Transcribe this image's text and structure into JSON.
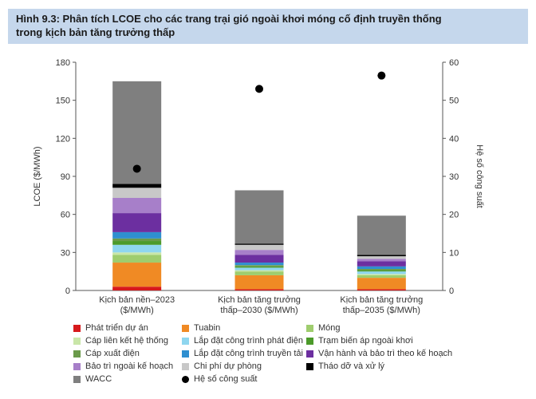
{
  "header": {
    "title_line1": "Hình 9.3: Phân tích LCOE cho các trang trại gió ngoài khơi móng cố định truyền thống",
    "title_line2": "trong kịch bản tăng trưởng thấp"
  },
  "chart_data": {
    "type": "bar",
    "stacked": true,
    "ylabel": "LCOE ($/MWh)",
    "y2label": "Hệ số công suất",
    "ylim": [
      0,
      180
    ],
    "y2lim": [
      0,
      60
    ],
    "yticks": [
      "0",
      "30",
      "60",
      "90",
      "120",
      "150",
      "180"
    ],
    "y2ticks": [
      "0",
      "10",
      "20",
      "30",
      "40",
      "50",
      "60"
    ],
    "categories": [
      [
        "Kịch bản nền–2023",
        "($/MWh)"
      ],
      [
        "Kịch bản tăng trưởng",
        "thấp–2030 ($/MWh)"
      ],
      [
        "Kịch bản tăng trưởng",
        "thấp–2035 ($/MWh)"
      ]
    ],
    "series": [
      {
        "name": "Phát triển dự án",
        "color": "#d7191c",
        "values": [
          3,
          1,
          1
        ]
      },
      {
        "name": "Tuabin",
        "color": "#f08a24",
        "values": [
          19,
          11,
          9
        ]
      },
      {
        "name": "Móng",
        "color": "#9fcd6e",
        "values": [
          6,
          3,
          2
        ]
      },
      {
        "name": "Cáp liên kết hệ thống",
        "color": "#c9e6a8",
        "values": [
          2,
          1,
          1
        ]
      },
      {
        "name": "Lắp đặt công trình phát điện",
        "color": "#8fd6ef",
        "values": [
          6,
          2,
          2
        ]
      },
      {
        "name": "Trạm biến áp ngoài khơi",
        "color": "#4c9a2a",
        "values": [
          3,
          1,
          1
        ]
      },
      {
        "name": "Cáp xuất điện",
        "color": "#6a9a4a",
        "values": [
          2,
          1,
          1
        ]
      },
      {
        "name": "Lắp đặt công trình truyền tải",
        "color": "#2f8fd0",
        "values": [
          5,
          2,
          2
        ]
      },
      {
        "name": "Vận hành và bảo trì theo kế hoạch",
        "color": "#6c2fa0",
        "values": [
          15,
          6,
          4
        ]
      },
      {
        "name": "Bảo trì ngoài kế hoạch",
        "color": "#a77fc9",
        "values": [
          12,
          4,
          2
        ]
      },
      {
        "name": "Chi phí dự phòng",
        "color": "#c8c8c8",
        "values": [
          8,
          4,
          2
        ]
      },
      {
        "name": "Tháo dỡ và xử lý",
        "color": "#000000",
        "values": [
          3,
          1,
          1
        ]
      },
      {
        "name": "WACC",
        "color": "#7f7f7f",
        "values": [
          81,
          42,
          31
        ]
      }
    ],
    "capacity_factor": {
      "name": "Hệ số công suất",
      "values": [
        32,
        53,
        56.5
      ]
    }
  },
  "legend": {
    "items": [
      {
        "label": "Phát triển dự án",
        "color": "#d7191c",
        "kind": "square"
      },
      {
        "label": "Tuabin",
        "color": "#f08a24",
        "kind": "square"
      },
      {
        "label": "Móng",
        "color": "#9fcd6e",
        "kind": "square"
      },
      {
        "label": "Cáp liên kết hệ thống",
        "color": "#c9e6a8",
        "kind": "square"
      },
      {
        "label": "Lắp đặt công trình phát điện",
        "color": "#8fd6ef",
        "kind": "square"
      },
      {
        "label": "Trạm biến áp ngoài khơi",
        "color": "#4c9a2a",
        "kind": "square"
      },
      {
        "label": "Cáp xuất điện",
        "color": "#6a9a4a",
        "kind": "square"
      },
      {
        "label": "Lắp đặt công trình truyền tải",
        "color": "#2f8fd0",
        "kind": "square"
      },
      {
        "label": "Vận hành và bảo trì theo kế hoạch",
        "color": "#6c2fa0",
        "kind": "square"
      },
      {
        "label": "Bảo trì ngoài kế hoạch",
        "color": "#a77fc9",
        "kind": "square"
      },
      {
        "label": "Chi phí dự phòng",
        "color": "#c8c8c8",
        "kind": "square"
      },
      {
        "label": "Tháo dỡ và xử lý",
        "color": "#000000",
        "kind": "square"
      },
      {
        "label": "WACC",
        "color": "#7f7f7f",
        "kind": "square"
      },
      {
        "label": "Hệ số công suất",
        "color": "#000000",
        "kind": "dot"
      }
    ]
  }
}
